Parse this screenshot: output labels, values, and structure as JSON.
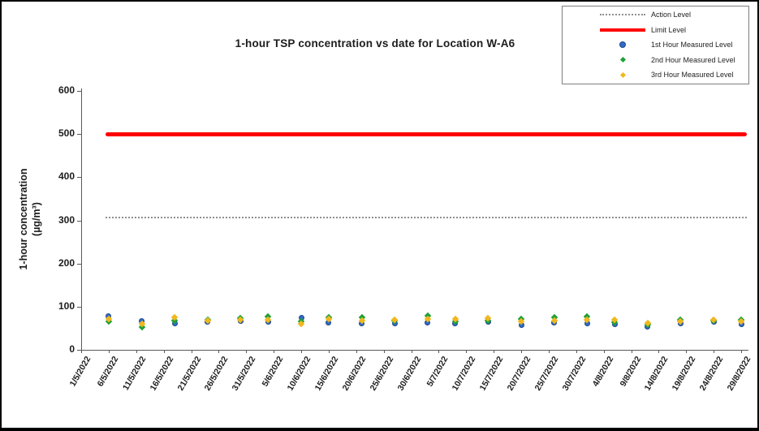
{
  "chart_data": {
    "type": "scatter",
    "title": "1-hour TSP concentration vs date for Location  W-A6",
    "ylabel_line1": "1-hour concentration",
    "ylabel_line2": "(µg/m³)",
    "xlabel": "",
    "ylim": [
      0,
      600
    ],
    "yticks": [
      0,
      100,
      200,
      300,
      400,
      500,
      600
    ],
    "x_tick_labels": [
      "1/5/2022",
      "6/5/2022",
      "11/5/2022",
      "16/5/2022",
      "21/5/2022",
      "26/5/2022",
      "31/5/2022",
      "5/6/2022",
      "10/6/2022",
      "15/6/2022",
      "20/6/2022",
      "25/6/2022",
      "30/6/2022",
      "5/7/2022",
      "10/7/2022",
      "15/7/2022",
      "20/7/2022",
      "25/7/2022",
      "30/7/2022",
      "4/8/2022",
      "9/8/2022",
      "14/8/2022",
      "19/8/2022",
      "24/8/2022",
      "29/8/2022"
    ],
    "x_axis_span_days": 120,
    "grid": "off",
    "legend_position": "top-right",
    "action_level": 306,
    "limit_level": 500,
    "measurement_dates": [
      "6/5/2022",
      "12/5/2022",
      "18/5/2022",
      "24/5/2022",
      "30/5/2022",
      "4/6/2022",
      "10/6/2022",
      "15/6/2022",
      "21/6/2022",
      "27/6/2022",
      "3/7/2022",
      "8/7/2022",
      "14/7/2022",
      "20/7/2022",
      "26/7/2022",
      "1/8/2022",
      "6/8/2022",
      "12/8/2022",
      "18/8/2022",
      "24/8/2022",
      "29/8/2022"
    ],
    "series": [
      {
        "name": "1st Hour Measured Level",
        "marker": "circle",
        "color": "#2f6bc6",
        "values": [
          78,
          66,
          61,
          65,
          66,
          64,
          74,
          63,
          62,
          62,
          63,
          61,
          64,
          58,
          63,
          61,
          60,
          53,
          61,
          65,
          59
        ]
      },
      {
        "name": "2nd Hour Measured Level",
        "marker": "diamond",
        "color": "#21a038",
        "values": [
          65,
          52,
          68,
          69,
          74,
          77,
          66,
          76,
          75,
          67,
          79,
          65,
          68,
          72,
          76,
          77,
          64,
          58,
          70,
          67,
          70
        ]
      },
      {
        "name": "3rd Hour Measured Level",
        "marker": "diamond",
        "color": "#f0b81e",
        "values": [
          71,
          60,
          75,
          67,
          69,
          70,
          60,
          71,
          68,
          70,
          72,
          72,
          74,
          65,
          67,
          69,
          69,
          63,
          66,
          70,
          66
        ]
      }
    ],
    "legend": {
      "entries": [
        {
          "label": "Action Level",
          "type": "line",
          "style": "dotted",
          "color": "#8f8f8f"
        },
        {
          "label": "Limit Level",
          "type": "line",
          "style": "solid",
          "color": "#ff0000"
        },
        {
          "label": "1st Hour Measured Level",
          "type": "marker",
          "shape": "circle",
          "color": "#2f6bc6"
        },
        {
          "label": "2nd Hour Measured Level",
          "type": "marker",
          "shape": "diamond",
          "color": "#21a038"
        },
        {
          "label": "3rd Hour Measured Level",
          "type": "marker",
          "shape": "diamond",
          "color": "#f0b81e"
        }
      ]
    },
    "colors": {
      "limit": "#ff0000",
      "action": "#8f8f8f",
      "axis": "#595959"
    }
  }
}
